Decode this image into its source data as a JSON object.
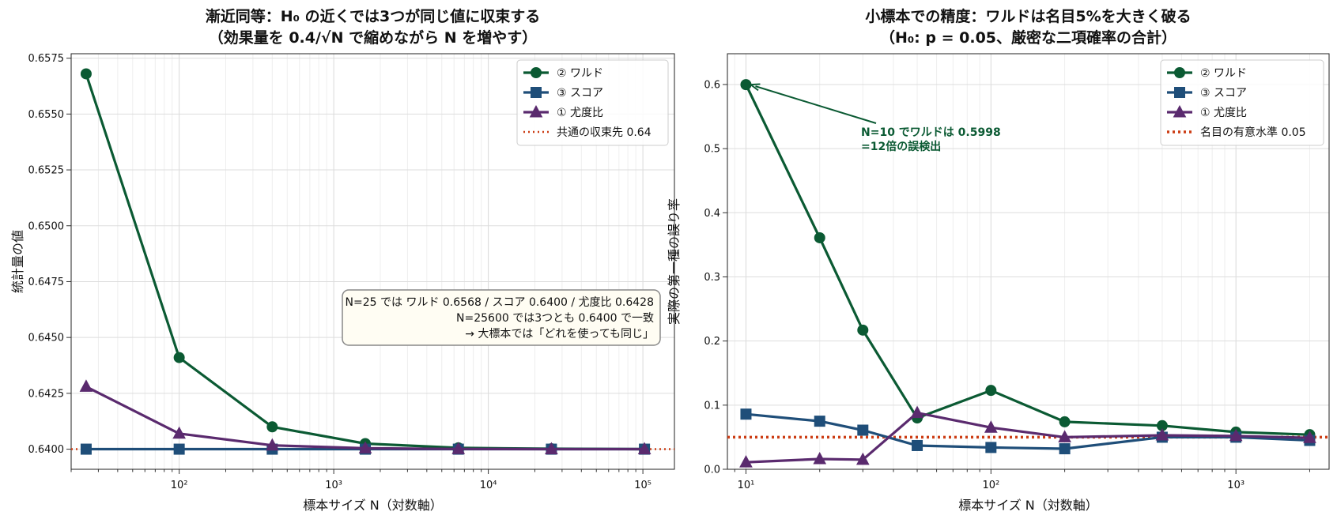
{
  "colors": {
    "wald": "#0b5a33",
    "score": "#1f4e79",
    "lr": "#5a2a6e",
    "reference": "#cc3d14",
    "annotation_text": "#0b5a33",
    "annotation_box_bg": "#fffdf3",
    "annotation_box_border": "#888888"
  },
  "chart_data": [
    {
      "type": "line",
      "title_line1": "漸近同等：H₀ の近くでは3つが同じ値に収束する",
      "title_line2": "（効果量を 0.4/√N で縮めながら N を増やす）",
      "xlabel": "標本サイズ N（対数軸）",
      "ylabel": "統計量の値",
      "x_scale": "log",
      "xlim": [
        20,
        160000
      ],
      "ylim": [
        0.6391,
        0.6577
      ],
      "x_ticks": [
        100,
        1000,
        10000,
        100000
      ],
      "x_tick_labels": [
        "10²",
        "10³",
        "10⁴",
        "10⁵"
      ],
      "y_ticks": [
        0.64,
        0.6425,
        0.645,
        0.6475,
        0.65,
        0.6525,
        0.655,
        0.6575
      ],
      "y_tick_labels": [
        "0.6400",
        "0.6425",
        "0.6450",
        "0.6475",
        "0.6500",
        "0.6525",
        "0.6550",
        "0.6575"
      ],
      "x": [
        25,
        100,
        400,
        1600,
        6400,
        25600,
        102400
      ],
      "series": [
        {
          "name": "② ワルド",
          "key": "wald",
          "marker": "circle",
          "values": [
            0.6568,
            0.6441,
            0.641,
            0.64025,
            0.64006,
            0.64002,
            0.64
          ]
        },
        {
          "name": "③ スコア",
          "key": "score",
          "marker": "square",
          "values": [
            0.64,
            0.64,
            0.64,
            0.64,
            0.64,
            0.64,
            0.64
          ]
        },
        {
          "name": "① 尤度比",
          "key": "lr",
          "marker": "triangle",
          "values": [
            0.6428,
            0.6407,
            0.64017,
            0.64004,
            0.64001,
            0.64,
            0.64
          ]
        }
      ],
      "reference_line": {
        "name": "共通の収束先 0.64",
        "y": 0.64,
        "style": "dotted"
      },
      "legend": "top-right",
      "grid": true,
      "annotation": {
        "lines": [
          "N=25 では ワルド 0.6568 / スコア 0.6400 / 尤度比 0.6428",
          "N=25600 では3つとも 0.6400 で一致",
          "→ 大標本では「どれを使っても同じ」"
        ]
      }
    },
    {
      "type": "line",
      "title_line1": "小標本での精度：ワルドは名目5%を大きく破る",
      "title_line2": "（H₀: p = 0.05、厳密な二項確率の合計）",
      "xlabel": "標本サイズ N（対数軸）",
      "ylabel": "実際の第一種の誤り率",
      "x_scale": "log",
      "xlim": [
        8.4,
        2400
      ],
      "ylim": [
        0,
        0.648
      ],
      "x_ticks": [
        10,
        100,
        1000
      ],
      "x_tick_labels": [
        "10¹",
        "10²",
        "10³"
      ],
      "y_ticks": [
        0,
        0.1,
        0.2,
        0.3,
        0.4,
        0.5,
        0.6
      ],
      "y_tick_labels": [
        "0.0",
        "0.1",
        "0.2",
        "0.3",
        "0.4",
        "0.5",
        "0.6"
      ],
      "x": [
        10,
        20,
        30,
        50,
        100,
        200,
        500,
        1000,
        2000
      ],
      "series": [
        {
          "name": "② ワルド",
          "key": "wald",
          "marker": "circle",
          "values": [
            0.5998,
            0.361,
            0.217,
            0.08,
            0.123,
            0.074,
            0.068,
            0.058,
            0.054
          ]
        },
        {
          "name": "③ スコア",
          "key": "score",
          "marker": "square",
          "values": [
            0.086,
            0.075,
            0.061,
            0.037,
            0.034,
            0.032,
            0.05,
            0.05,
            0.045
          ]
        },
        {
          "name": "① 尤度比",
          "key": "lr",
          "marker": "triangle",
          "values": [
            0.011,
            0.016,
            0.015,
            0.088,
            0.065,
            0.05,
            0.053,
            0.052,
            0.049
          ]
        }
      ],
      "reference_line": {
        "name": "名目の有意水準 0.05",
        "y": 0.05,
        "style": "dotted"
      },
      "legend": "top-right",
      "grid": true,
      "annotation": {
        "lines": [
          "N=10 でワルドは 0.5998",
          "=12倍の誤検出"
        ],
        "arrow_to": {
          "x": 10,
          "y": 0.5998
        }
      }
    }
  ]
}
